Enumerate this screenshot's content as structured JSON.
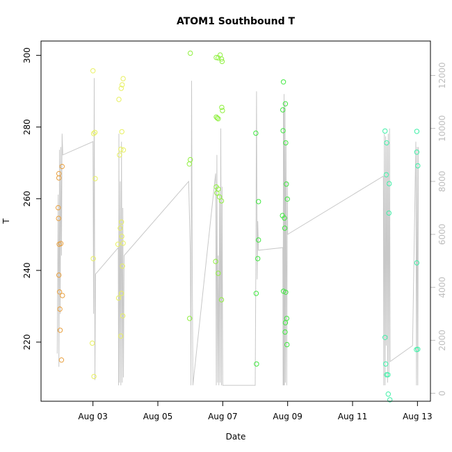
{
  "chart_data": {
    "type": "scatter",
    "title": "ATOM1 Southbound T",
    "xlabel": "Date",
    "ylabel": "T",
    "x_ticks": [
      {
        "day": 3,
        "label": "Aug 03"
      },
      {
        "day": 5,
        "label": "Aug 05"
      },
      {
        "day": 7,
        "label": "Aug 07"
      },
      {
        "day": 9,
        "label": "Aug 09"
      },
      {
        "day": 11,
        "label": "Aug 11"
      },
      {
        "day": 13,
        "label": "Aug 13"
      }
    ],
    "xlim": [
      1.4,
      13.4
    ],
    "ylim": [
      203.5,
      304
    ],
    "y_ticks": [
      220,
      240,
      260,
      280,
      300
    ],
    "y2lim": [
      -300,
      13300
    ],
    "y2_ticks": [
      0,
      2000,
      4000,
      6000,
      8000,
      10000,
      12000
    ],
    "grid": false,
    "colors": {
      "line": "#c8c8c8",
      "box": "#000000",
      "right_axis": "#bdbdbd"
    },
    "points": [
      {
        "x": 1.95,
        "y": 267,
        "color": "#e8a040"
      },
      {
        "x": 1.95,
        "y": 265.8,
        "color": "#e8a040"
      },
      {
        "x": 1.93,
        "y": 257.5,
        "color": "#e8a040"
      },
      {
        "x": 1.94,
        "y": 254.5,
        "color": "#e8a040"
      },
      {
        "x": 1.96,
        "y": 247.3,
        "color": "#e8a040"
      },
      {
        "x": 2.01,
        "y": 247.5,
        "color": "#e8a040"
      },
      {
        "x": 1.95,
        "y": 238.7,
        "color": "#e8a040"
      },
      {
        "x": 1.97,
        "y": 234,
        "color": "#e8a040"
      },
      {
        "x": 2.06,
        "y": 233,
        "color": "#e8a040"
      },
      {
        "x": 1.98,
        "y": 229.2,
        "color": "#e8a040"
      },
      {
        "x": 1.99,
        "y": 223.3,
        "color": "#e8a040"
      },
      {
        "x": 2.03,
        "y": 215,
        "color": "#e8a040"
      },
      {
        "x": 2.05,
        "y": 269,
        "color": "#e8a040"
      },
      {
        "x": 3.0,
        "y": 295.7,
        "color": "#e8f060"
      },
      {
        "x": 3.02,
        "y": 278.2,
        "color": "#e8f060"
      },
      {
        "x": 3.06,
        "y": 278.5,
        "color": "#e8f060"
      },
      {
        "x": 3.07,
        "y": 265.6,
        "color": "#e8f060"
      },
      {
        "x": 3.01,
        "y": 243.3,
        "color": "#e8f060"
      },
      {
        "x": 2.98,
        "y": 219.7,
        "color": "#e8f060"
      },
      {
        "x": 3.03,
        "y": 210.4,
        "color": "#e8f060"
      },
      {
        "x": 3.8,
        "y": 287.7,
        "color": "#e8f060"
      },
      {
        "x": 3.87,
        "y": 290.8,
        "color": "#e8f060"
      },
      {
        "x": 3.9,
        "y": 291.8,
        "color": "#e8f060"
      },
      {
        "x": 3.93,
        "y": 293.5,
        "color": "#e8f060"
      },
      {
        "x": 3.89,
        "y": 278.7,
        "color": "#e8f060"
      },
      {
        "x": 3.86,
        "y": 273.8,
        "color": "#e8f060"
      },
      {
        "x": 3.94,
        "y": 273.6,
        "color": "#e8f060"
      },
      {
        "x": 3.82,
        "y": 272.2,
        "color": "#e8f060"
      },
      {
        "x": 3.88,
        "y": 253.5,
        "color": "#e8f060"
      },
      {
        "x": 3.84,
        "y": 251.8,
        "color": "#e8f060"
      },
      {
        "x": 3.89,
        "y": 249.5,
        "color": "#e8f060"
      },
      {
        "x": 3.77,
        "y": 247.3,
        "color": "#e8f060"
      },
      {
        "x": 3.93,
        "y": 247.6,
        "color": "#e8f060"
      },
      {
        "x": 3.91,
        "y": 241.2,
        "color": "#e8f060"
      },
      {
        "x": 3.88,
        "y": 233.6,
        "color": "#e8f060"
      },
      {
        "x": 3.79,
        "y": 232.3,
        "color": "#e8f060"
      },
      {
        "x": 3.92,
        "y": 227.3,
        "color": "#e8f060"
      },
      {
        "x": 3.86,
        "y": 221.7,
        "color": "#e8f060"
      },
      {
        "x": 6.0,
        "y": 300.6,
        "color": "#90f040"
      },
      {
        "x": 6.0,
        "y": 270.9,
        "color": "#90f040"
      },
      {
        "x": 5.97,
        "y": 269.7,
        "color": "#90f040"
      },
      {
        "x": 5.98,
        "y": 226.6,
        "color": "#90f040"
      },
      {
        "x": 6.8,
        "y": 299.4,
        "color": "#90f040"
      },
      {
        "x": 6.86,
        "y": 299.3,
        "color": "#90f040"
      },
      {
        "x": 6.92,
        "y": 300.1,
        "color": "#90f040"
      },
      {
        "x": 6.96,
        "y": 299,
        "color": "#90f040"
      },
      {
        "x": 6.98,
        "y": 298.3,
        "color": "#90f040"
      },
      {
        "x": 6.97,
        "y": 285.5,
        "color": "#90f040"
      },
      {
        "x": 6.99,
        "y": 284.6,
        "color": "#90f040"
      },
      {
        "x": 6.8,
        "y": 282.8,
        "color": "#90f040"
      },
      {
        "x": 6.83,
        "y": 282.5,
        "color": "#90f040"
      },
      {
        "x": 6.86,
        "y": 282.3,
        "color": "#90f040"
      },
      {
        "x": 6.8,
        "y": 263.3,
        "color": "#90f040"
      },
      {
        "x": 6.86,
        "y": 262.7,
        "color": "#90f040"
      },
      {
        "x": 6.82,
        "y": 261.6,
        "color": "#90f040"
      },
      {
        "x": 6.9,
        "y": 260.5,
        "color": "#90f040"
      },
      {
        "x": 6.96,
        "y": 259.4,
        "color": "#90f040"
      },
      {
        "x": 6.78,
        "y": 242.5,
        "color": "#90f040"
      },
      {
        "x": 6.86,
        "y": 239.2,
        "color": "#90f040"
      },
      {
        "x": 6.96,
        "y": 231.8,
        "color": "#90f040"
      },
      {
        "x": 8.02,
        "y": 278.3,
        "color": "#40e840"
      },
      {
        "x": 8.1,
        "y": 259.2,
        "color": "#40e840"
      },
      {
        "x": 8.1,
        "y": 248.5,
        "color": "#40e840"
      },
      {
        "x": 8.08,
        "y": 243.3,
        "color": "#40e840"
      },
      {
        "x": 8.03,
        "y": 233.6,
        "color": "#40e840"
      },
      {
        "x": 8.04,
        "y": 213.9,
        "color": "#40e840"
      },
      {
        "x": 8.87,
        "y": 292.6,
        "color": "#40e840"
      },
      {
        "x": 8.93,
        "y": 286.5,
        "color": "#40e840"
      },
      {
        "x": 8.85,
        "y": 284.8,
        "color": "#40e840"
      },
      {
        "x": 8.86,
        "y": 279,
        "color": "#40e840"
      },
      {
        "x": 8.94,
        "y": 275.6,
        "color": "#40e840"
      },
      {
        "x": 8.96,
        "y": 264.1,
        "color": "#40e840"
      },
      {
        "x": 8.99,
        "y": 259.9,
        "color": "#40e840"
      },
      {
        "x": 8.84,
        "y": 255.3,
        "color": "#40e840"
      },
      {
        "x": 8.9,
        "y": 254.6,
        "color": "#40e840"
      },
      {
        "x": 8.91,
        "y": 251.8,
        "color": "#40e840"
      },
      {
        "x": 8.87,
        "y": 234.2,
        "color": "#40e840"
      },
      {
        "x": 8.94,
        "y": 233.9,
        "color": "#40e840"
      },
      {
        "x": 8.97,
        "y": 226.6,
        "color": "#40e840"
      },
      {
        "x": 8.93,
        "y": 225.4,
        "color": "#40e840"
      },
      {
        "x": 8.92,
        "y": 222.8,
        "color": "#40e840"
      },
      {
        "x": 8.98,
        "y": 219.3,
        "color": "#40e840"
      },
      {
        "x": 12.0,
        "y": 278.9,
        "color": "#40f0a8"
      },
      {
        "x": 12.05,
        "y": 275.6,
        "color": "#40f0a8"
      },
      {
        "x": 12.04,
        "y": 266.7,
        "color": "#40f0a8"
      },
      {
        "x": 12.13,
        "y": 264.2,
        "color": "#40f0a8"
      },
      {
        "x": 12.12,
        "y": 256,
        "color": "#40f0a8"
      },
      {
        "x": 12.0,
        "y": 221.3,
        "color": "#40f0a8"
      },
      {
        "x": 12.02,
        "y": 213.9,
        "color": "#40f0a8"
      },
      {
        "x": 12.05,
        "y": 210.9,
        "color": "#40f0a8"
      },
      {
        "x": 12.09,
        "y": 210.9,
        "color": "#40f0a8"
      },
      {
        "x": 12.1,
        "y": 205.5,
        "color": "#40f0a8"
      },
      {
        "x": 12.15,
        "y": 203.9,
        "color": "#40f0a8"
      },
      {
        "x": 12.98,
        "y": 278.8,
        "color": "#40f0a8"
      },
      {
        "x": 12.98,
        "y": 273,
        "color": "#40f0a8"
      },
      {
        "x": 13.01,
        "y": 269.2,
        "color": "#40f0a8"
      },
      {
        "x": 12.98,
        "y": 242.1,
        "color": "#40f0a8"
      },
      {
        "x": 12.97,
        "y": 217.9,
        "color": "#40f0a8"
      },
      {
        "x": 13.01,
        "y": 218,
        "color": "#40f0a8"
      }
    ],
    "line_y2": [
      [
        1.9,
        1500
      ],
      [
        1.93,
        7500
      ],
      [
        1.95,
        1000
      ],
      [
        1.97,
        9200
      ],
      [
        1.99,
        3000
      ],
      [
        2.01,
        9300
      ],
      [
        2.03,
        5200
      ],
      [
        2.05,
        9800
      ],
      [
        2.07,
        9000
      ],
      [
        3.0,
        9500
      ],
      [
        3.02,
        3000
      ],
      [
        3.04,
        11900
      ],
      [
        3.06,
        500
      ],
      [
        3.08,
        4500
      ],
      [
        3.78,
        5500
      ],
      [
        3.79,
        300
      ],
      [
        3.8,
        9800
      ],
      [
        3.82,
        400
      ],
      [
        3.84,
        8000
      ],
      [
        3.86,
        300
      ],
      [
        3.88,
        9500
      ],
      [
        3.9,
        400
      ],
      [
        3.92,
        7000
      ],
      [
        3.94,
        600
      ],
      [
        3.96,
        5200
      ],
      [
        5.95,
        8000
      ],
      [
        6.0,
        5300
      ],
      [
        6.02,
        300
      ],
      [
        6.04,
        11800
      ],
      [
        6.06,
        4600
      ],
      [
        6.08,
        300
      ],
      [
        6.78,
        8300
      ],
      [
        6.8,
        300
      ],
      [
        6.82,
        9000
      ],
      [
        6.84,
        400
      ],
      [
        6.86,
        5200
      ],
      [
        6.88,
        300
      ],
      [
        6.9,
        7500
      ],
      [
        6.92,
        400
      ],
      [
        6.94,
        10000
      ],
      [
        6.96,
        300
      ],
      [
        6.98,
        7800
      ],
      [
        7.0,
        300
      ],
      [
        8.0,
        300
      ],
      [
        8.02,
        4800
      ],
      [
        8.04,
        11400
      ],
      [
        8.06,
        4300
      ],
      [
        8.08,
        6500
      ],
      [
        8.1,
        5400
      ],
      [
        8.85,
        5500
      ],
      [
        8.86,
        300
      ],
      [
        8.87,
        10800
      ],
      [
        8.88,
        300
      ],
      [
        8.89,
        11300
      ],
      [
        8.9,
        300
      ],
      [
        8.92,
        11000
      ],
      [
        8.93,
        400
      ],
      [
        8.95,
        9500
      ],
      [
        8.97,
        300
      ],
      [
        8.99,
        8000
      ],
      [
        9.0,
        6000
      ],
      [
        11.95,
        8200
      ],
      [
        11.96,
        300
      ],
      [
        11.98,
        9800
      ],
      [
        12.0,
        300
      ],
      [
        12.02,
        9700
      ],
      [
        12.04,
        1800
      ],
      [
        12.06,
        9500
      ],
      [
        12.08,
        400
      ],
      [
        12.1,
        9800
      ],
      [
        12.12,
        800
      ],
      [
        12.14,
        10000
      ],
      [
        12.16,
        1200
      ],
      [
        12.85,
        1800
      ],
      [
        12.95,
        9500
      ],
      [
        12.97,
        300
      ],
      [
        12.99,
        9300
      ],
      [
        13.01,
        300
      ],
      [
        13.03,
        9300
      ]
    ]
  }
}
